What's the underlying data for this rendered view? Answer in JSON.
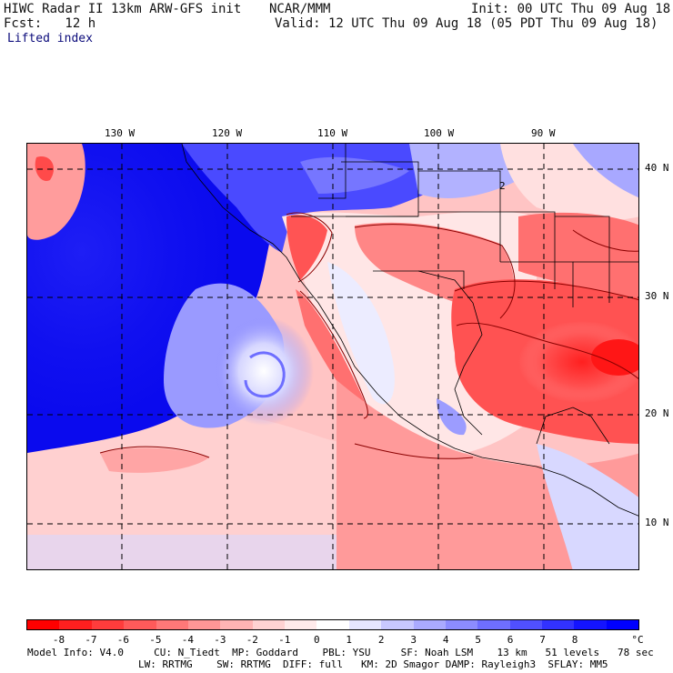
{
  "header": {
    "left_line1": "HIWC Radar II 13km ARW-GFS init",
    "center_line1": "NCAR/MMM",
    "right_line1": "Init: 00 UTC Thu 09 Aug 18",
    "left_line2": "Fcst:   12 h",
    "right_line2": "Valid: 12 UTC Thu 09 Aug 18 (05 PDT Thu 09 Aug 18)",
    "field": "Lifted index"
  },
  "map": {
    "lon_labels": [
      "130 W",
      "120 W",
      "110 W",
      "100 W",
      "90 W"
    ],
    "lat_labels": [
      "40 N",
      "30 N",
      "20 N",
      "10 N"
    ],
    "contour_label": "2"
  },
  "colorbar": {
    "labels": [
      "-8",
      "-7",
      "-6",
      "-5",
      "-4",
      "-3",
      "-2",
      "-1",
      "0",
      "1",
      "2",
      "3",
      "4",
      "5",
      "6",
      "7",
      "8"
    ],
    "unit": "°C",
    "colors": [
      "#ff0000",
      "#ff1f1f",
      "#ff3c3c",
      "#ff5a5a",
      "#ff7878",
      "#ff9696",
      "#ffb4b4",
      "#ffd2d2",
      "#ffeaea",
      "#ffffff",
      "#e6e6ff",
      "#c8c8ff",
      "#aaaaff",
      "#8c8cff",
      "#6e6eff",
      "#5050ff",
      "#3232ff",
      "#1414ff",
      "#0000ff"
    ]
  },
  "footer": {
    "line1": "Model Info: V4.0     CU: N_Tiedt  MP: Goddard    PBL: YSU     SF: Noah LSM    13 km   51 levels   78 sec",
    "line2": "LW: RRTMG    SW: RRTMG  DIFF: full   KM: 2D Smagor DAMP: Rayleigh3  SFLAY: MM5"
  }
}
